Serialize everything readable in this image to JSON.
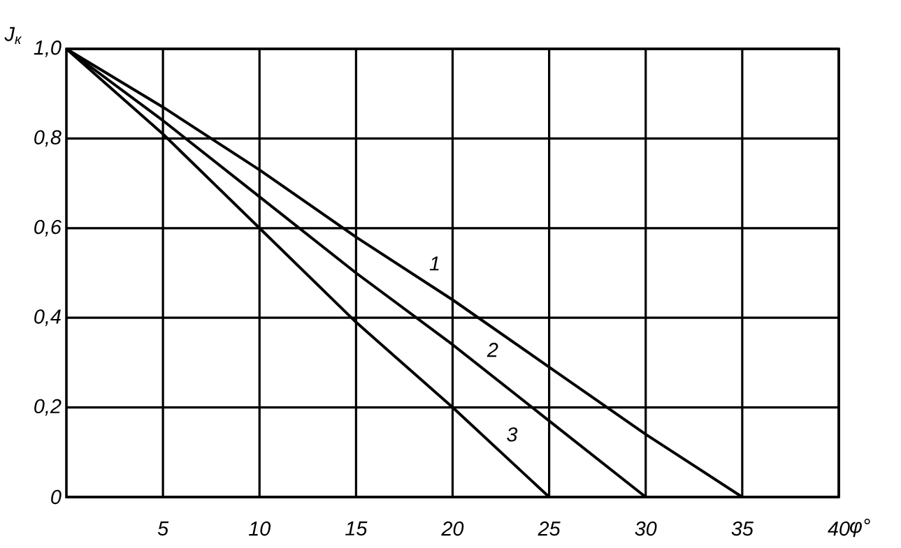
{
  "chart_data": {
    "type": "line",
    "xlabel": "φ°",
    "ylabel": "J$_{к}$",
    "xlim": [
      0,
      40
    ],
    "ylim": [
      0,
      1
    ],
    "xticks": [
      5,
      10,
      15,
      20,
      25,
      30,
      35,
      40
    ],
    "yticks": [
      0,
      {
        "value": 0.2,
        "label": "0,2"
      },
      {
        "value": 0.4,
        "label": "0,4"
      },
      {
        "value": 0.6,
        "label": "0,6"
      },
      {
        "value": 0.8,
        "label": "0,8"
      },
      {
        "value": 1.0,
        "label": "1,0"
      }
    ],
    "grid": true,
    "legend": false,
    "marker": "none",
    "line_style": "solid",
    "series": [
      {
        "name": "1",
        "color": "#000000",
        "x": [
          0,
          5,
          10,
          15,
          20,
          25,
          30,
          35
        ],
        "values": [
          1,
          0.87,
          0.73,
          0.58,
          0.44,
          0.29,
          0.14,
          0
        ]
      },
      {
        "name": "2",
        "color": "#000000",
        "x": [
          0,
          5,
          10,
          15,
          20,
          25,
          30
        ],
        "values": [
          1,
          0.84,
          0.67,
          0.5,
          0.34,
          0.17,
          0
        ]
      },
      {
        "name": "3",
        "color": "#000000",
        "x": [
          0,
          5,
          10,
          15,
          20,
          25
        ],
        "values": [
          1,
          0.81,
          0.6,
          0.39,
          0.2,
          0
        ]
      }
    ]
  }
}
